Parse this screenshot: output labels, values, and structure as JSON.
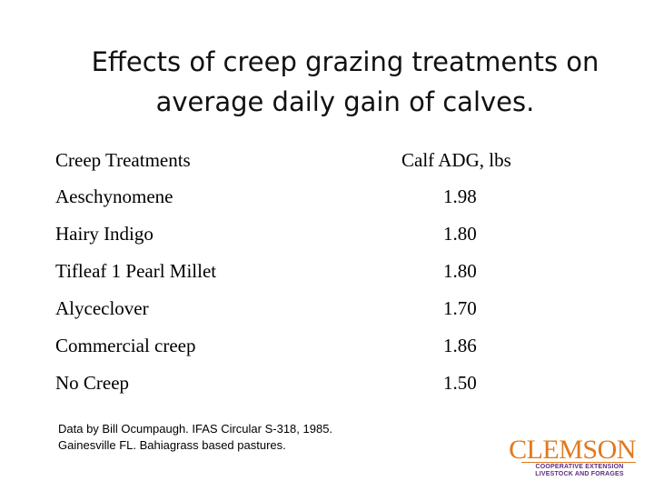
{
  "title": {
    "line1": "Effects of creep grazing treatments on",
    "line2": "average daily gain of calves."
  },
  "table": {
    "headers": [
      "Creep Treatments",
      "Calf ADG, lbs"
    ],
    "rows": [
      {
        "treatment": "Aeschynomene",
        "adg": "1.98"
      },
      {
        "treatment": "Hairy Indigo",
        "adg": "1.80"
      },
      {
        "treatment": "Tifleaf 1 Pearl Millet",
        "adg": "1.80"
      },
      {
        "treatment": "Alyceclover",
        "adg": "1.70"
      },
      {
        "treatment": "Commercial creep",
        "adg": "1.86"
      },
      {
        "treatment": "No Creep",
        "adg": "1.50"
      }
    ]
  },
  "source": {
    "line1": "Data by Bill Ocumpaugh. IFAS Circular S-318, 1985.",
    "line2": "Gainesville FL. Bahiagrass based pastures."
  },
  "logo": {
    "word": "CLEMSON",
    "sub1": "COOPERATIVE EXTENSION",
    "sub2": "LIVESTOCK AND FORAGES",
    "color_primary": "#e07a1f",
    "color_secondary": "#5b2c83"
  }
}
